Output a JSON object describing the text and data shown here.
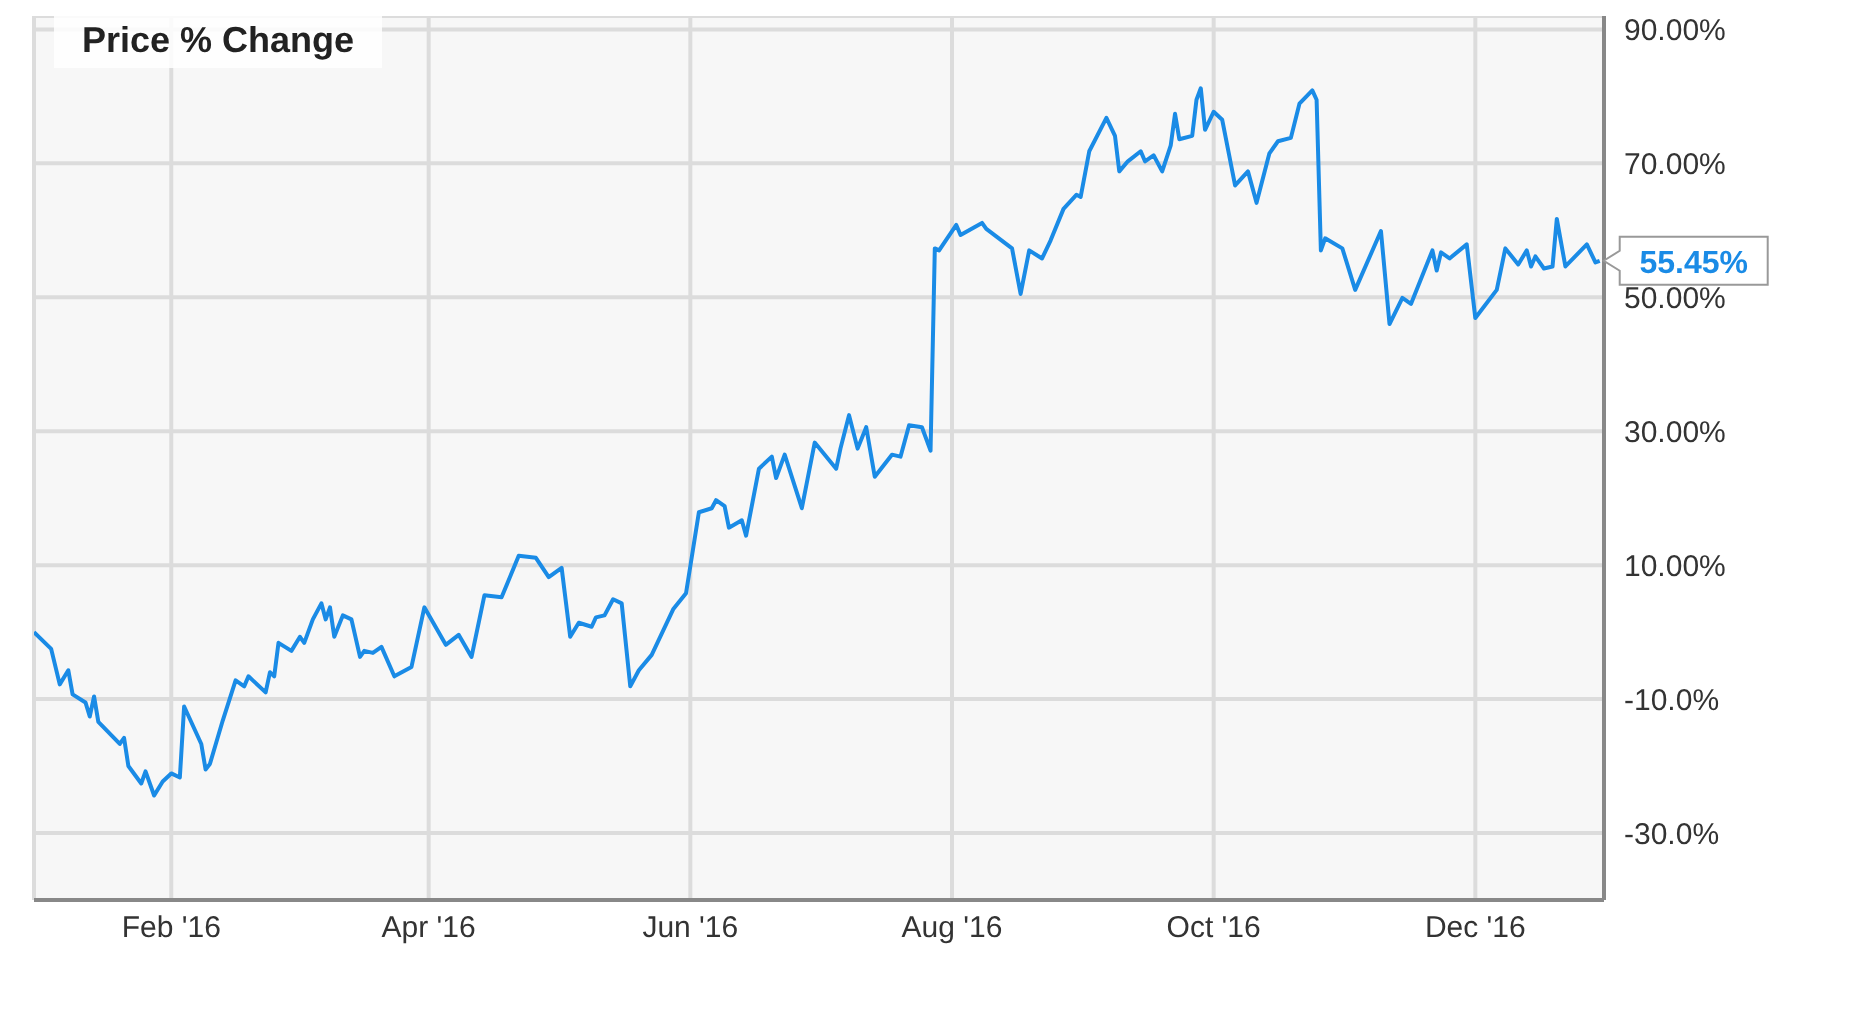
{
  "chart_data": {
    "type": "line",
    "title": "Price % Change",
    "x": [
      "2015-12-31",
      "2016-01-04",
      "2016-01-06",
      "2016-01-08",
      "2016-01-09",
      "2016-01-12",
      "2016-01-13",
      "2016-01-14",
      "2016-01-15",
      "2016-01-20",
      "2016-01-21",
      "2016-01-22",
      "2016-01-25",
      "2016-01-26",
      "2016-01-28",
      "2016-01-30",
      "2016-02-01",
      "2016-02-03",
      "2016-02-04",
      "2016-02-08",
      "2016-02-09",
      "2016-02-10",
      "2016-02-13",
      "2016-02-16",
      "2016-02-18",
      "2016-02-19",
      "2016-02-23",
      "2016-02-24",
      "2016-02-25",
      "2016-02-26",
      "2016-02-29",
      "2016-03-02",
      "2016-03-03",
      "2016-03-05",
      "2016-03-07",
      "2016-03-08",
      "2016-03-09",
      "2016-03-10",
      "2016-03-12",
      "2016-03-14",
      "2016-03-16",
      "2016-03-17",
      "2016-03-19",
      "2016-03-21",
      "2016-03-24",
      "2016-03-28",
      "2016-03-31",
      "2016-04-05",
      "2016-04-08",
      "2016-04-11",
      "2016-04-14",
      "2016-04-18",
      "2016-04-22",
      "2016-04-26",
      "2016-04-29",
      "2016-05-02",
      "2016-05-04",
      "2016-05-06",
      "2016-05-09",
      "2016-05-10",
      "2016-05-12",
      "2016-05-14",
      "2016-05-16",
      "2016-05-18",
      "2016-05-20",
      "2016-05-23",
      "2016-05-28",
      "2016-05-31",
      "2016-06-03",
      "2016-06-06",
      "2016-06-07",
      "2016-06-09",
      "2016-06-10",
      "2016-06-13",
      "2016-06-14",
      "2016-06-17",
      "2016-06-20",
      "2016-06-21",
      "2016-06-23",
      "2016-06-27",
      "2016-06-30",
      "2016-07-05",
      "2016-07-06",
      "2016-07-08",
      "2016-07-10",
      "2016-07-12",
      "2016-07-14",
      "2016-07-18",
      "2016-07-20",
      "2016-07-22",
      "2016-07-25",
      "2016-07-27",
      "2016-07-28",
      "2016-07-29",
      "2016-08-02",
      "2016-08-03",
      "2016-08-08",
      "2016-08-09",
      "2016-08-15",
      "2016-08-17",
      "2016-08-19",
      "2016-08-22",
      "2016-08-24",
      "2016-08-27",
      "2016-08-30",
      "2016-08-31",
      "2016-09-02",
      "2016-09-06",
      "2016-09-08",
      "2016-09-09",
      "2016-09-11",
      "2016-09-14",
      "2016-09-15",
      "2016-09-17",
      "2016-09-19",
      "2016-09-21",
      "2016-09-22",
      "2016-09-23",
      "2016-09-26",
      "2016-09-27",
      "2016-09-28",
      "2016-09-29",
      "2016-10-01",
      "2016-10-03",
      "2016-10-06",
      "2016-10-09",
      "2016-10-11",
      "2016-10-14",
      "2016-10-16",
      "2016-10-19",
      "2016-10-21",
      "2016-10-24",
      "2016-10-25",
      "2016-10-26",
      "2016-10-27",
      "2016-10-31",
      "2016-11-03",
      "2016-11-09",
      "2016-11-11",
      "2016-11-14",
      "2016-11-16",
      "2016-11-21",
      "2016-11-22",
      "2016-11-23",
      "2016-11-25",
      "2016-11-29",
      "2016-12-01",
      "2016-12-06",
      "2016-12-08",
      "2016-12-11",
      "2016-12-13",
      "2016-12-14",
      "2016-12-15",
      "2016-12-17",
      "2016-12-19",
      "2016-12-20",
      "2016-12-22",
      "2016-12-27",
      "2016-12-29",
      "2016-12-30"
    ],
    "series": [
      {
        "color": "#1a8be6",
        "values": [
          0,
          -2.5,
          -7.8,
          -5.7,
          -9.3,
          -10.5,
          -12.6,
          -9.6,
          -13.4,
          -16.7,
          -15.8,
          -20,
          -22.6,
          -20.8,
          -24.4,
          -22.3,
          -21.1,
          -21.7,
          -11.1,
          -16.7,
          -20.5,
          -19.7,
          -13.2,
          -7.2,
          -8.1,
          -6.6,
          -9,
          -6,
          -6.6,
          -1.6,
          -2.8,
          -0.7,
          -1.6,
          1.9,
          4.3,
          1.9,
          3.7,
          -0.7,
          2.5,
          1.9,
          -3.7,
          -2.8,
          -3.1,
          -2.2,
          -6.6,
          -5.2,
          3.7,
          -1.9,
          -0.4,
          -3.7,
          5.5,
          5.2,
          11.4,
          11.1,
          8.2,
          9.6,
          -0.7,
          1.4,
          0.8,
          2.2,
          2.5,
          4.9,
          4.3,
          -8.1,
          -5.7,
          -3.4,
          3.4,
          5.8,
          17.9,
          18.5,
          19.7,
          18.8,
          15.6,
          16.7,
          14.4,
          24.4,
          26.2,
          23,
          26.5,
          18.5,
          28.3,
          24.4,
          27.4,
          32.4,
          27.4,
          30.6,
          23.2,
          26.5,
          26.2,
          30.9,
          30.6,
          27.1,
          57.3,
          57,
          60.8,
          59.3,
          61.1,
          60.2,
          57.3,
          50.5,
          57,
          55.8,
          58.5,
          63.2,
          65.3,
          65,
          71.8,
          76.8,
          74.1,
          68.8,
          70.3,
          71.8,
          70.3,
          71.2,
          68.8,
          72.7,
          77.4,
          73.6,
          74.1,
          79.5,
          81.2,
          75,
          77.7,
          76.5,
          66.7,
          68.8,
          64.1,
          71.5,
          73.3,
          73.8,
          78.9,
          80.9,
          79.5,
          57,
          58.8,
          57.3,
          51.1,
          59.9,
          46,
          49.9,
          49,
          57,
          54,
          56.7,
          55.8,
          57.9,
          46.9,
          51.1,
          57.3,
          54.9,
          57,
          54.6,
          56.1,
          54.3,
          54.6,
          61.7,
          54.6,
          57.9,
          55.2,
          55.45
        ]
      }
    ],
    "xlim": [
      "2015-12-31",
      "2016-12-31"
    ],
    "xticks": [
      {
        "value": "2016-02-01",
        "label": "Feb '16"
      },
      {
        "value": "2016-04-01",
        "label": "Apr '16"
      },
      {
        "value": "2016-06-01",
        "label": "Jun '16"
      },
      {
        "value": "2016-08-01",
        "label": "Aug '16"
      },
      {
        "value": "2016-10-01",
        "label": "Oct '16"
      },
      {
        "value": "2016-12-01",
        "label": "Dec '16"
      }
    ],
    "ylim": [
      -40,
      92
    ],
    "yticks": [
      {
        "value": -30,
        "label": "-30.0%"
      },
      {
        "value": -10,
        "label": "-10.0%"
      },
      {
        "value": 10,
        "label": "10.00%"
      },
      {
        "value": 30,
        "label": "30.00%"
      },
      {
        "value": 50,
        "label": "50.00%"
      },
      {
        "value": 70,
        "label": "70.00%"
      },
      {
        "value": 90,
        "label": "90.00%"
      }
    ],
    "grid": true,
    "annotations": [
      {
        "text": "55.45%",
        "x": "2016-12-30",
        "y": 55.45
      }
    ]
  }
}
